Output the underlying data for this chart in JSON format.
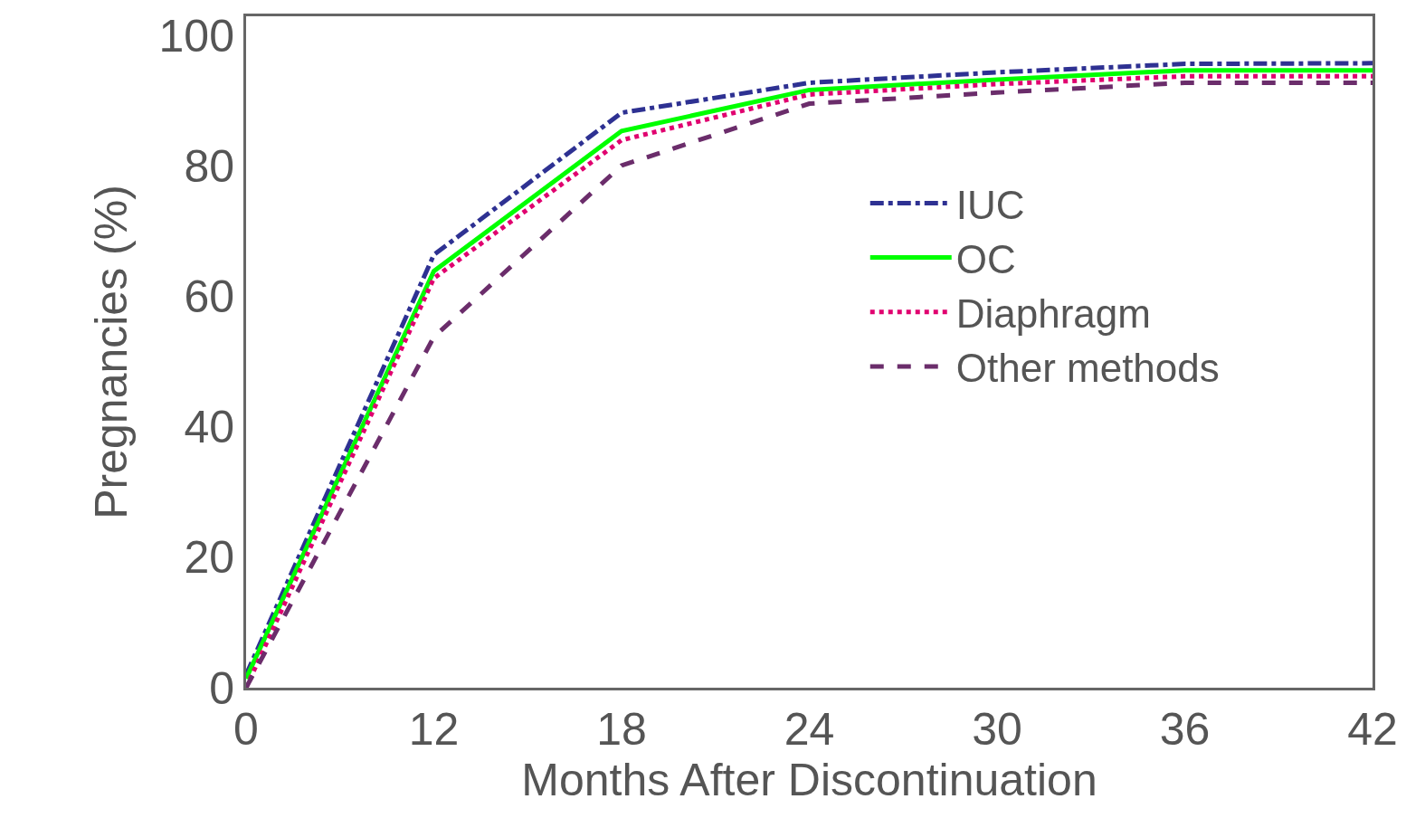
{
  "chart_data": {
    "type": "line",
    "xlabel": "Months After Discontinuation",
    "ylabel": "Pregnancies (%)",
    "categories": [
      "0",
      "12",
      "18",
      "24",
      "30",
      "36",
      "42"
    ],
    "ylim": [
      0,
      103
    ],
    "yticks": [
      0,
      20,
      40,
      60,
      80,
      100
    ],
    "grid": false,
    "legend": "right",
    "marker": "none",
    "series": [
      {
        "name": "IUC",
        "color": "#2e3192",
        "line_style": "dashdot",
        "values": [
          2,
          66.4,
          88.2,
          92.8,
          94.4,
          95.7,
          95.8
        ]
      },
      {
        "name": "OC",
        "color": "#00ff00",
        "line_style": "solid",
        "values": [
          1.4,
          63.9,
          85.4,
          91.7,
          93.3,
          94.7,
          94.7
        ]
      },
      {
        "name": "Diaphragm",
        "color": "#e0006f",
        "line_style": "dotted",
        "values": [
          0,
          62.8,
          84,
          91,
          92.6,
          93.8,
          93.8
        ]
      },
      {
        "name": "Other methods",
        "color": "#6b2d6b",
        "line_style": "dashed",
        "values": [
          0,
          53.8,
          80.1,
          89.6,
          91.3,
          92.8,
          92.8
        ]
      }
    ]
  }
}
